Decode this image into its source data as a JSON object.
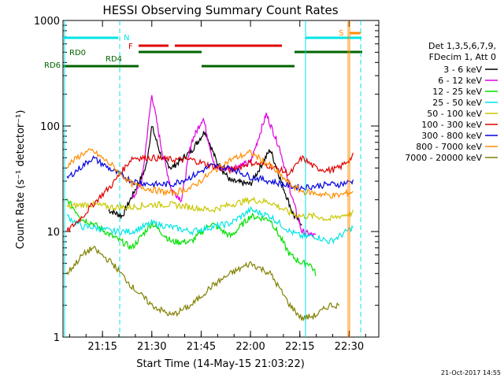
{
  "chart_data": {
    "type": "line",
    "title": "HESSI Observing Summary Count Rates",
    "xlabel": "Start Time (14-May-15 21:03:22)",
    "ylabel": "Count Rate (s⁻¹ detector⁻¹)",
    "yscale": "log",
    "ylim": [
      1,
      1000
    ],
    "xlim_minutes": [
      21.05,
      22.65
    ],
    "x_ticks": [
      "21:15",
      "21:30",
      "21:45",
      "22:00",
      "22:15",
      "22:30"
    ],
    "y_ticks": [
      "1",
      "10",
      "100",
      "1000"
    ],
    "legend_header": [
      "Det 1,3,5,6,7,9,",
      "FDecim 1, Att 0"
    ],
    "legend_placement": "right",
    "footer_date": "21-Oct-2017 14:55",
    "flags": [
      {
        "label": "N",
        "color": "#00e5e5"
      },
      {
        "label": "F",
        "color": "#e00000"
      },
      {
        "label": "S",
        "color": "#ff8c00"
      },
      {
        "label": "RD0",
        "color": "#006400"
      },
      {
        "label": "RD4",
        "color": "#006400"
      },
      {
        "label": "RD6",
        "color": "#006400"
      }
    ],
    "series": [
      {
        "name": "3 - 6 keV",
        "color": "#000000",
        "points": [
          [
            21.28,
            16
          ],
          [
            21.35,
            14
          ],
          [
            21.47,
            40
          ],
          [
            21.5,
            100
          ],
          [
            21.55,
            50
          ],
          [
            21.6,
            40
          ],
          [
            21.7,
            58
          ],
          [
            21.77,
            90
          ],
          [
            21.83,
            45
          ],
          [
            21.9,
            30
          ],
          [
            22.0,
            28
          ],
          [
            22.1,
            60
          ],
          [
            22.17,
            25
          ],
          [
            22.22,
            14
          ],
          [
            22.26,
            12
          ]
        ]
      },
      {
        "name": "6 - 12 keV",
        "color": "#e000e0",
        "points": [
          [
            21.4,
            20
          ],
          [
            21.45,
            30
          ],
          [
            21.5,
            200
          ],
          [
            21.55,
            60
          ],
          [
            21.6,
            25
          ],
          [
            21.65,
            20
          ],
          [
            21.7,
            70
          ],
          [
            21.76,
            120
          ],
          [
            21.82,
            40
          ],
          [
            21.9,
            40
          ],
          [
            22.0,
            45
          ],
          [
            22.08,
            130
          ],
          [
            22.15,
            60
          ],
          [
            22.2,
            25
          ],
          [
            22.26,
            10
          ],
          [
            22.33,
            9
          ]
        ]
      },
      {
        "name": "12 - 25 keV",
        "color": "#00e000",
        "points": [
          [
            21.07,
            20
          ],
          [
            21.15,
            13
          ],
          [
            21.2,
            12
          ],
          [
            21.3,
            9
          ],
          [
            21.4,
            7
          ],
          [
            21.5,
            12
          ],
          [
            21.6,
            8
          ],
          [
            21.7,
            8
          ],
          [
            21.8,
            12
          ],
          [
            21.9,
            9
          ],
          [
            22.0,
            14
          ],
          [
            22.1,
            13
          ],
          [
            22.2,
            6
          ],
          [
            22.26,
            5
          ],
          [
            22.3,
            5
          ],
          [
            22.33,
            4
          ]
        ]
      },
      {
        "name": "25 - 50 keV",
        "color": "#00e5e5",
        "points": [
          [
            21.07,
            14
          ],
          [
            21.15,
            11
          ],
          [
            21.2,
            11
          ],
          [
            21.3,
            10
          ],
          [
            21.4,
            10
          ],
          [
            21.5,
            12
          ],
          [
            21.6,
            11
          ],
          [
            21.7,
            10
          ],
          [
            21.8,
            11
          ],
          [
            21.9,
            12
          ],
          [
            22.0,
            16
          ],
          [
            22.1,
            14
          ],
          [
            22.2,
            10
          ],
          [
            22.26,
            9
          ],
          [
            22.33,
            9
          ],
          [
            22.4,
            8
          ],
          [
            22.45,
            9
          ],
          [
            22.52,
            11
          ]
        ]
      },
      {
        "name": "50 - 100 keV",
        "color": "#c8c800",
        "points": [
          [
            21.07,
            17
          ],
          [
            21.15,
            18
          ],
          [
            21.2,
            18
          ],
          [
            21.3,
            17
          ],
          [
            21.4,
            17
          ],
          [
            21.5,
            18
          ],
          [
            21.6,
            18
          ],
          [
            21.7,
            17
          ],
          [
            21.8,
            16
          ],
          [
            21.9,
            18
          ],
          [
            22.0,
            20
          ],
          [
            22.1,
            19
          ],
          [
            22.2,
            15
          ],
          [
            22.26,
            14
          ],
          [
            22.33,
            14
          ],
          [
            22.4,
            13
          ],
          [
            22.45,
            14
          ],
          [
            22.52,
            15
          ]
        ]
      },
      {
        "name": "100 - 300 keV",
        "color": "#e00000",
        "points": [
          [
            21.07,
            10
          ],
          [
            21.15,
            14
          ],
          [
            21.2,
            18
          ],
          [
            21.3,
            28
          ],
          [
            21.4,
            50
          ],
          [
            21.5,
            50
          ],
          [
            21.6,
            48
          ],
          [
            21.7,
            48
          ],
          [
            21.8,
            42
          ],
          [
            21.9,
            38
          ],
          [
            22.0,
            45
          ],
          [
            22.1,
            42
          ],
          [
            22.2,
            35
          ],
          [
            22.26,
            50
          ],
          [
            22.33,
            40
          ],
          [
            22.4,
            38
          ],
          [
            22.45,
            40
          ],
          [
            22.52,
            52
          ]
        ]
      },
      {
        "name": "300 - 800 keV",
        "color": "#0000e0",
        "points": [
          [
            21.07,
            32
          ],
          [
            21.15,
            42
          ],
          [
            21.2,
            50
          ],
          [
            21.3,
            38
          ],
          [
            21.4,
            30
          ],
          [
            21.5,
            28
          ],
          [
            21.6,
            28
          ],
          [
            21.7,
            33
          ],
          [
            21.8,
            42
          ],
          [
            21.9,
            40
          ],
          [
            22.0,
            33
          ],
          [
            22.1,
            30
          ],
          [
            22.2,
            27
          ],
          [
            22.26,
            26
          ],
          [
            22.33,
            27
          ],
          [
            22.4,
            28
          ],
          [
            22.45,
            28
          ],
          [
            22.52,
            30
          ]
        ]
      },
      {
        "name": "800 - 7000 keV",
        "color": "#ff8c00",
        "points": [
          [
            21.07,
            42
          ],
          [
            21.15,
            55
          ],
          [
            21.2,
            58
          ],
          [
            21.3,
            42
          ],
          [
            21.4,
            28
          ],
          [
            21.5,
            25
          ],
          [
            21.6,
            23
          ],
          [
            21.7,
            26
          ],
          [
            21.8,
            36
          ],
          [
            21.9,
            48
          ],
          [
            22.0,
            56
          ],
          [
            22.1,
            42
          ],
          [
            22.2,
            28
          ],
          [
            22.26,
            24
          ],
          [
            22.33,
            23
          ],
          [
            22.4,
            22
          ],
          [
            22.45,
            22
          ],
          [
            22.52,
            24
          ]
        ]
      },
      {
        "name": "7000 - 20000 keV",
        "color": "#808000",
        "points": [
          [
            21.07,
            4
          ],
          [
            21.15,
            6
          ],
          [
            21.2,
            7
          ],
          [
            21.3,
            5
          ],
          [
            21.4,
            3
          ],
          [
            21.5,
            2
          ],
          [
            21.6,
            1.6
          ],
          [
            21.7,
            2
          ],
          [
            21.8,
            3
          ],
          [
            21.9,
            4
          ],
          [
            22.0,
            5
          ],
          [
            22.1,
            4
          ],
          [
            22.2,
            2
          ],
          [
            22.26,
            1.5
          ],
          [
            22.33,
            1.6
          ],
          [
            22.4,
            2
          ],
          [
            22.45,
            2
          ]
        ]
      }
    ]
  }
}
